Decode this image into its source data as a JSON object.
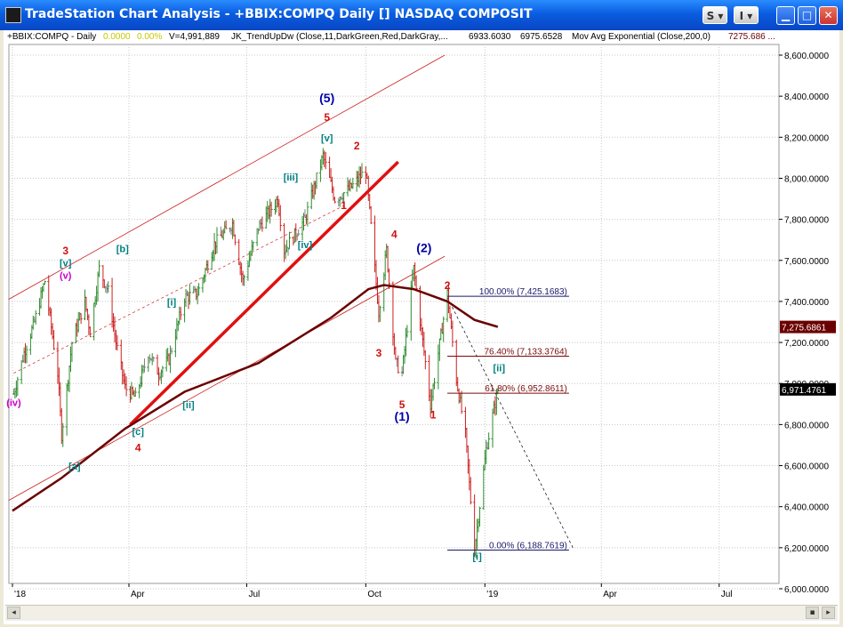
{
  "window": {
    "title": "TradeStation Chart Analysis - +BBIX:COMPQ Daily [] NASDAQ COMPOSIT",
    "button_s": "S",
    "button_i": "I"
  },
  "header": {
    "symbol": "+BBIX:COMPQ - Daily",
    "change": "0.0000",
    "change_pct": "0.00%",
    "volume": "V=4,991,889",
    "indicator": "JK_TrendUpDw (Close,11,DarkGreen,Red,DarkGray,...",
    "val1": "6933.6030",
    "val2": "6975.6528",
    "ma_label": "Mov Avg Exponential (Close,200,0)",
    "ma_value": "7275.686 ..."
  },
  "colors": {
    "up_bar": "#2e8b2e",
    "down_bar": "#cc2020",
    "neutral_bar": "#808080",
    "moving_average": "#6b0000",
    "trendline": "#e01010",
    "channel": "#cc2020",
    "fib": "#7a0a0a",
    "wave_red": "#d01010",
    "wave_blue": "#0000aa",
    "wave_teal": "#008080",
    "wave_magenta": "#cc00cc"
  },
  "chart_data": {
    "type": "candlestick",
    "title": "+BBIX:COMPQ Daily - NASDAQ COMPOSIT",
    "x_ticks": [
      "'18",
      "Apr",
      "Jul",
      "Oct",
      "'19",
      "Apr",
      "Jul"
    ],
    "y_ticks": [
      "8,600.0000",
      "8,400.0000",
      "8,200.0000",
      "8,000.0000",
      "7,800.0000",
      "7,600.0000",
      "7,400.0000",
      "7,200.0000",
      "7,000.0000",
      "6,800.0000",
      "6,600.0000",
      "6,400.0000",
      "6,200.0000",
      "6,000.0000"
    ],
    "ylim": [
      5900,
      8700
    ],
    "last_price_label": "6,971.4761",
    "ma_price_label": "7,275.6861",
    "approx_daily_close": [
      [
        "2018-01-02",
        6950
      ],
      [
        "2018-01-10",
        7150
      ],
      [
        "2018-01-18",
        7300
      ],
      [
        "2018-01-26",
        7500
      ],
      [
        "2018-02-05",
        7050
      ],
      [
        "2018-02-08",
        6750
      ],
      [
        "2018-02-16",
        7200
      ],
      [
        "2018-02-26",
        7400
      ],
      [
        "2018-03-02",
        7250
      ],
      [
        "2018-03-09",
        7560
      ],
      [
        "2018-03-16",
        7450
      ],
      [
        "2018-03-22",
        7200
      ],
      [
        "2018-03-29",
        6980
      ],
      [
        "2018-04-06",
        6930
      ],
      [
        "2018-04-16",
        7150
      ],
      [
        "2018-04-24",
        7050
      ],
      [
        "2018-05-02",
        7120
      ],
      [
        "2018-05-14",
        7420
      ],
      [
        "2018-05-24",
        7440
      ],
      [
        "2018-06-06",
        7680
      ],
      [
        "2018-06-20",
        7780
      ],
      [
        "2018-06-28",
        7500
      ],
      [
        "2018-07-10",
        7760
      ],
      [
        "2018-07-25",
        7900
      ],
      [
        "2018-07-30",
        7650
      ],
      [
        "2018-08-15",
        7800
      ],
      [
        "2018-08-29",
        8110
      ],
      [
        "2018-09-07",
        7900
      ],
      [
        "2018-09-19",
        7950
      ],
      [
        "2018-10-01",
        8040
      ],
      [
        "2018-10-11",
        7350
      ],
      [
        "2018-10-17",
        7650
      ],
      [
        "2018-10-24",
        7100
      ],
      [
        "2018-10-29",
        7050
      ],
      [
        "2018-11-07",
        7560
      ],
      [
        "2018-11-20",
        6900
      ],
      [
        "2018-12-03",
        7440
      ],
      [
        "2018-12-10",
        7020
      ],
      [
        "2018-12-17",
        6750
      ],
      [
        "2018-12-24",
        6190
      ],
      [
        "2019-01-02",
        6680
      ],
      [
        "2019-01-11",
        6971
      ]
    ],
    "moving_average_200ema": [
      [
        "2018-01-01",
        6380
      ],
      [
        "2018-02-08",
        6540
      ],
      [
        "2018-03-29",
        6780
      ],
      [
        "2018-05-14",
        6960
      ],
      [
        "2018-07-10",
        7100
      ],
      [
        "2018-09-04",
        7320
      ],
      [
        "2018-10-03",
        7460
      ],
      [
        "2018-10-15",
        7480
      ],
      [
        "2018-11-07",
        7460
      ],
      [
        "2018-12-03",
        7400
      ],
      [
        "2018-12-24",
        7310
      ],
      [
        "2019-01-11",
        7276
      ]
    ],
    "fibonacci": [
      {
        "label": "100.00% (7,425.1683)",
        "value": 7425.1683
      },
      {
        "label": "76.40% (7,133.3764)",
        "value": 7133.3764
      },
      {
        "label": "61.80% (6,952.8611)",
        "value": 6952.8611
      },
      {
        "label": "0.00% (6,188.7619)",
        "value": 6188.7619
      }
    ],
    "wave_labels": [
      {
        "text": "(5)",
        "date": "2018-09-01",
        "price": 8370
      },
      {
        "text": "5",
        "date": "2018-09-01",
        "price": 8280
      },
      {
        "text": "[v]",
        "date": "2018-09-01",
        "price": 8180
      },
      {
        "text": "2",
        "date": "2018-09-24",
        "price": 8140
      },
      {
        "text": "[iii]",
        "date": "2018-08-04",
        "price": 7990
      },
      {
        "text": "1",
        "date": "2018-09-14",
        "price": 7850
      },
      {
        "text": "[iv]",
        "date": "2018-08-15",
        "price": 7660
      },
      {
        "text": "4",
        "date": "2018-10-23",
        "price": 7710
      },
      {
        "text": "(2)",
        "date": "2018-11-15",
        "price": 7640
      },
      {
        "text": "3",
        "date": "2018-10-11",
        "price": 7130
      },
      {
        "text": "5",
        "date": "2018-10-29",
        "price": 6880
      },
      {
        "text": "(1)",
        "date": "2018-10-29",
        "price": 6820
      },
      {
        "text": "1",
        "date": "2018-11-22",
        "price": 6830
      },
      {
        "text": "2",
        "date": "2018-12-03",
        "price": 7460
      },
      {
        "text": "[ii]",
        "date": "2019-01-12",
        "price": 7060
      },
      {
        "text": "[i]",
        "date": "2018-12-26",
        "price": 6140
      },
      {
        "text": "3",
        "date": "2018-02-11",
        "price": 7630
      },
      {
        "text": "[v]",
        "date": "2018-02-11",
        "price": 7570
      },
      {
        "text": "(v)",
        "date": "2018-02-11",
        "price": 7510
      },
      {
        "text": "[b]",
        "date": "2018-03-27",
        "price": 7640
      },
      {
        "text": "[i]",
        "date": "2018-05-04",
        "price": 7380
      },
      {
        "text": "[ii]",
        "date": "2018-05-17",
        "price": 6880
      },
      {
        "text": "[c]",
        "date": "2018-04-08",
        "price": 6750
      },
      {
        "text": "4",
        "date": "2018-04-08",
        "price": 6670
      },
      {
        "text": "[a]",
        "date": "2018-02-18",
        "price": 6580
      },
      {
        "text": "(iv)",
        "date": "2018-01-02",
        "price": 6890
      }
    ]
  }
}
